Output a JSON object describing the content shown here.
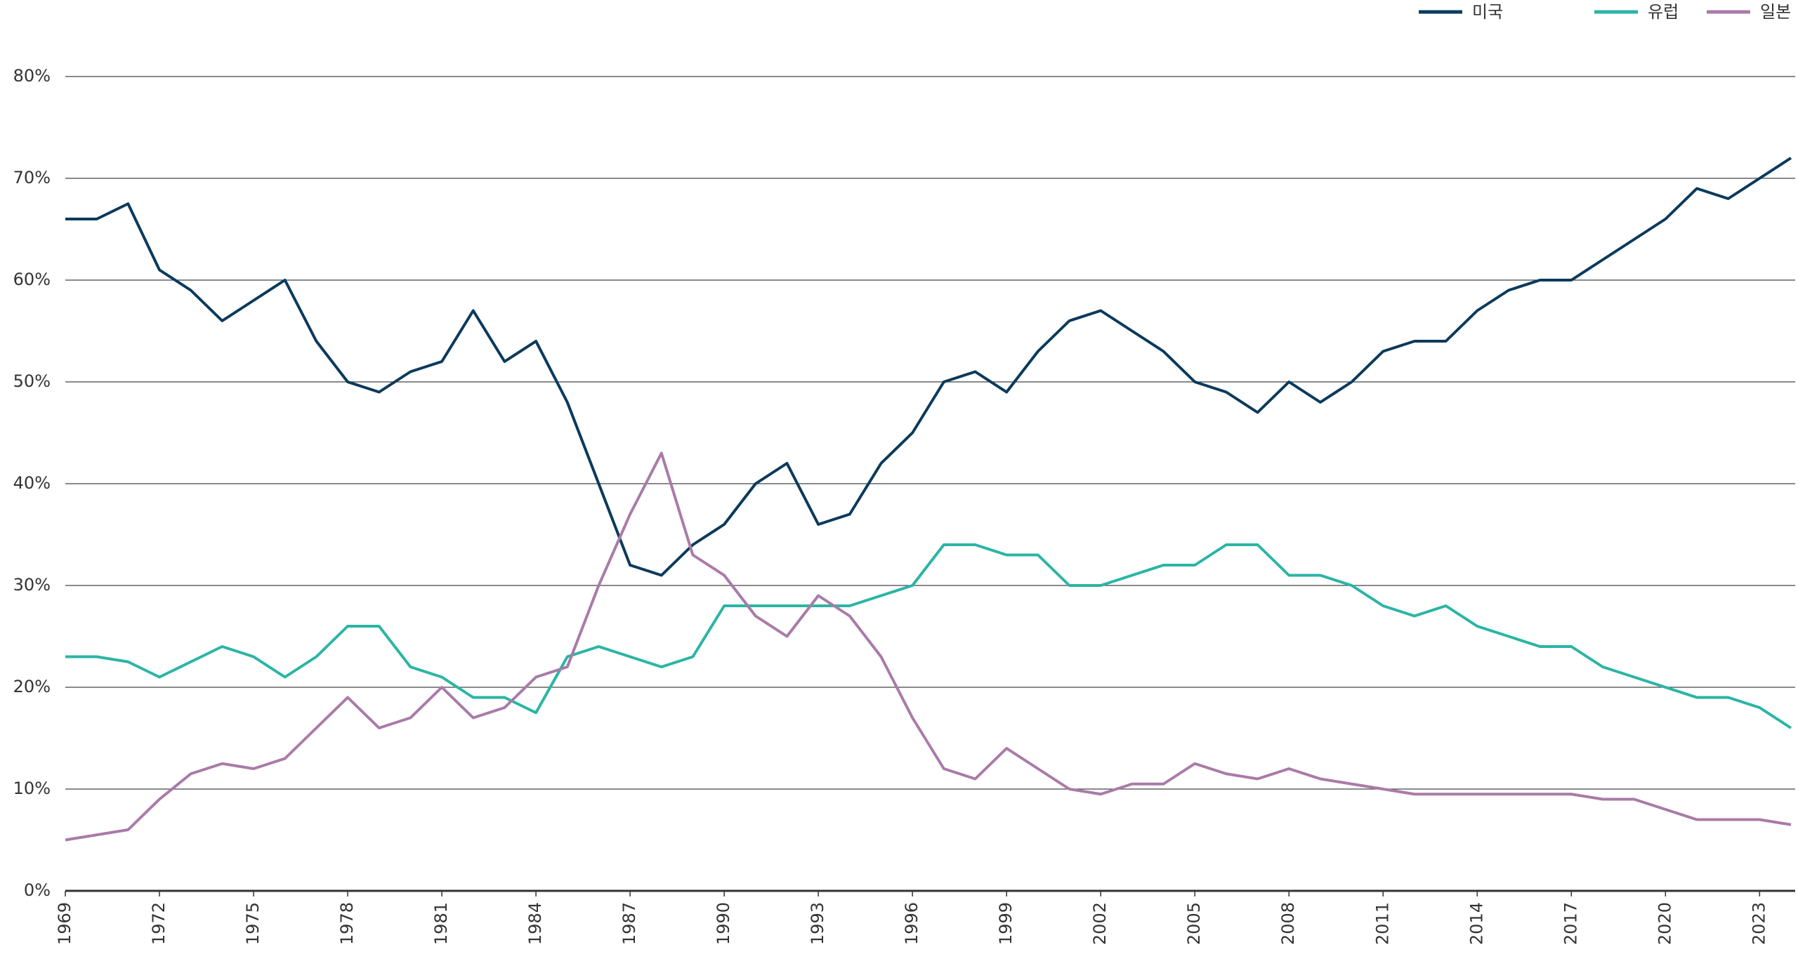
{
  "chart_data": {
    "type": "line",
    "x": [
      1969,
      1970,
      1971,
      1972,
      1973,
      1974,
      1975,
      1976,
      1977,
      1978,
      1979,
      1980,
      1981,
      1982,
      1983,
      1984,
      1985,
      1986,
      1987,
      1988,
      1989,
      1990,
      1991,
      1992,
      1993,
      1994,
      1995,
      1996,
      1997,
      1998,
      1999,
      2000,
      2001,
      2002,
      2003,
      2004,
      2005,
      2006,
      2007,
      2008,
      2009,
      2010,
      2011,
      2012,
      2013,
      2014,
      2015,
      2016,
      2017,
      2018,
      2019,
      2020,
      2021,
      2022,
      2023,
      2024
    ],
    "series": [
      {
        "name": "미국",
        "color": "#0b3a5c",
        "values": [
          66,
          66,
          67.5,
          61,
          59,
          56,
          58,
          60,
          54,
          50,
          49,
          51,
          52,
          57,
          52,
          54,
          48,
          40,
          32,
          31,
          34,
          36,
          40,
          42,
          36,
          37,
          42,
          45,
          50,
          51,
          49,
          53,
          56,
          57,
          55,
          53,
          50,
          49,
          47,
          50,
          48,
          50,
          53,
          54,
          54,
          57,
          59,
          60,
          60,
          62,
          64,
          66,
          69,
          68,
          70,
          72
        ]
      },
      {
        "name": "유럽",
        "color": "#2bb5a5",
        "values": [
          23,
          23,
          22.5,
          21,
          22.5,
          24,
          23,
          21,
          23,
          26,
          26,
          22,
          21,
          19,
          19,
          17.5,
          23,
          24,
          23,
          22,
          23,
          28,
          28,
          28,
          28,
          28,
          29,
          30,
          34,
          34,
          33,
          33,
          30,
          30,
          31,
          32,
          32,
          34,
          34,
          31,
          31,
          30,
          28,
          27,
          28,
          26,
          25,
          24,
          24,
          22,
          21,
          20,
          19,
          19,
          18,
          16
        ]
      },
      {
        "name": "일본",
        "color": "#a97ba8",
        "values": [
          5,
          5.5,
          6,
          9,
          11.5,
          12.5,
          12,
          13,
          16,
          19,
          16,
          17,
          20,
          17,
          18,
          21,
          22,
          30,
          37,
          43,
          33,
          31,
          27,
          25,
          29,
          27,
          23,
          17,
          12,
          11,
          14,
          12,
          10,
          9.5,
          10.5,
          10.5,
          12.5,
          11.5,
          11,
          12,
          11,
          10.5,
          10,
          9.5,
          9.5,
          9.5,
          9.5,
          9.5,
          9.5,
          9,
          9,
          8,
          7,
          7,
          7,
          6.5
        ]
      }
    ],
    "xlim": [
      1969,
      2024
    ],
    "xticks": [
      1969,
      1972,
      1975,
      1978,
      1981,
      1984,
      1987,
      1990,
      1993,
      1996,
      1999,
      2002,
      2005,
      2008,
      2011,
      2014,
      2017,
      2020,
      2023
    ],
    "ylim": [
      0,
      80
    ],
    "yticks": [
      {
        "value": 0,
        "label": "0%"
      },
      {
        "value": 10,
        "label": "10%"
      },
      {
        "value": 20,
        "label": "20%"
      },
      {
        "value": 30,
        "label": "30%"
      },
      {
        "value": 40,
        "label": "40%"
      },
      {
        "value": 50,
        "label": "50%"
      },
      {
        "value": 60,
        "label": "60%"
      },
      {
        "value": 70,
        "label": "70%"
      },
      {
        "value": 80,
        "label": "80%"
      }
    ],
    "grid": true,
    "legend": "top-right"
  }
}
